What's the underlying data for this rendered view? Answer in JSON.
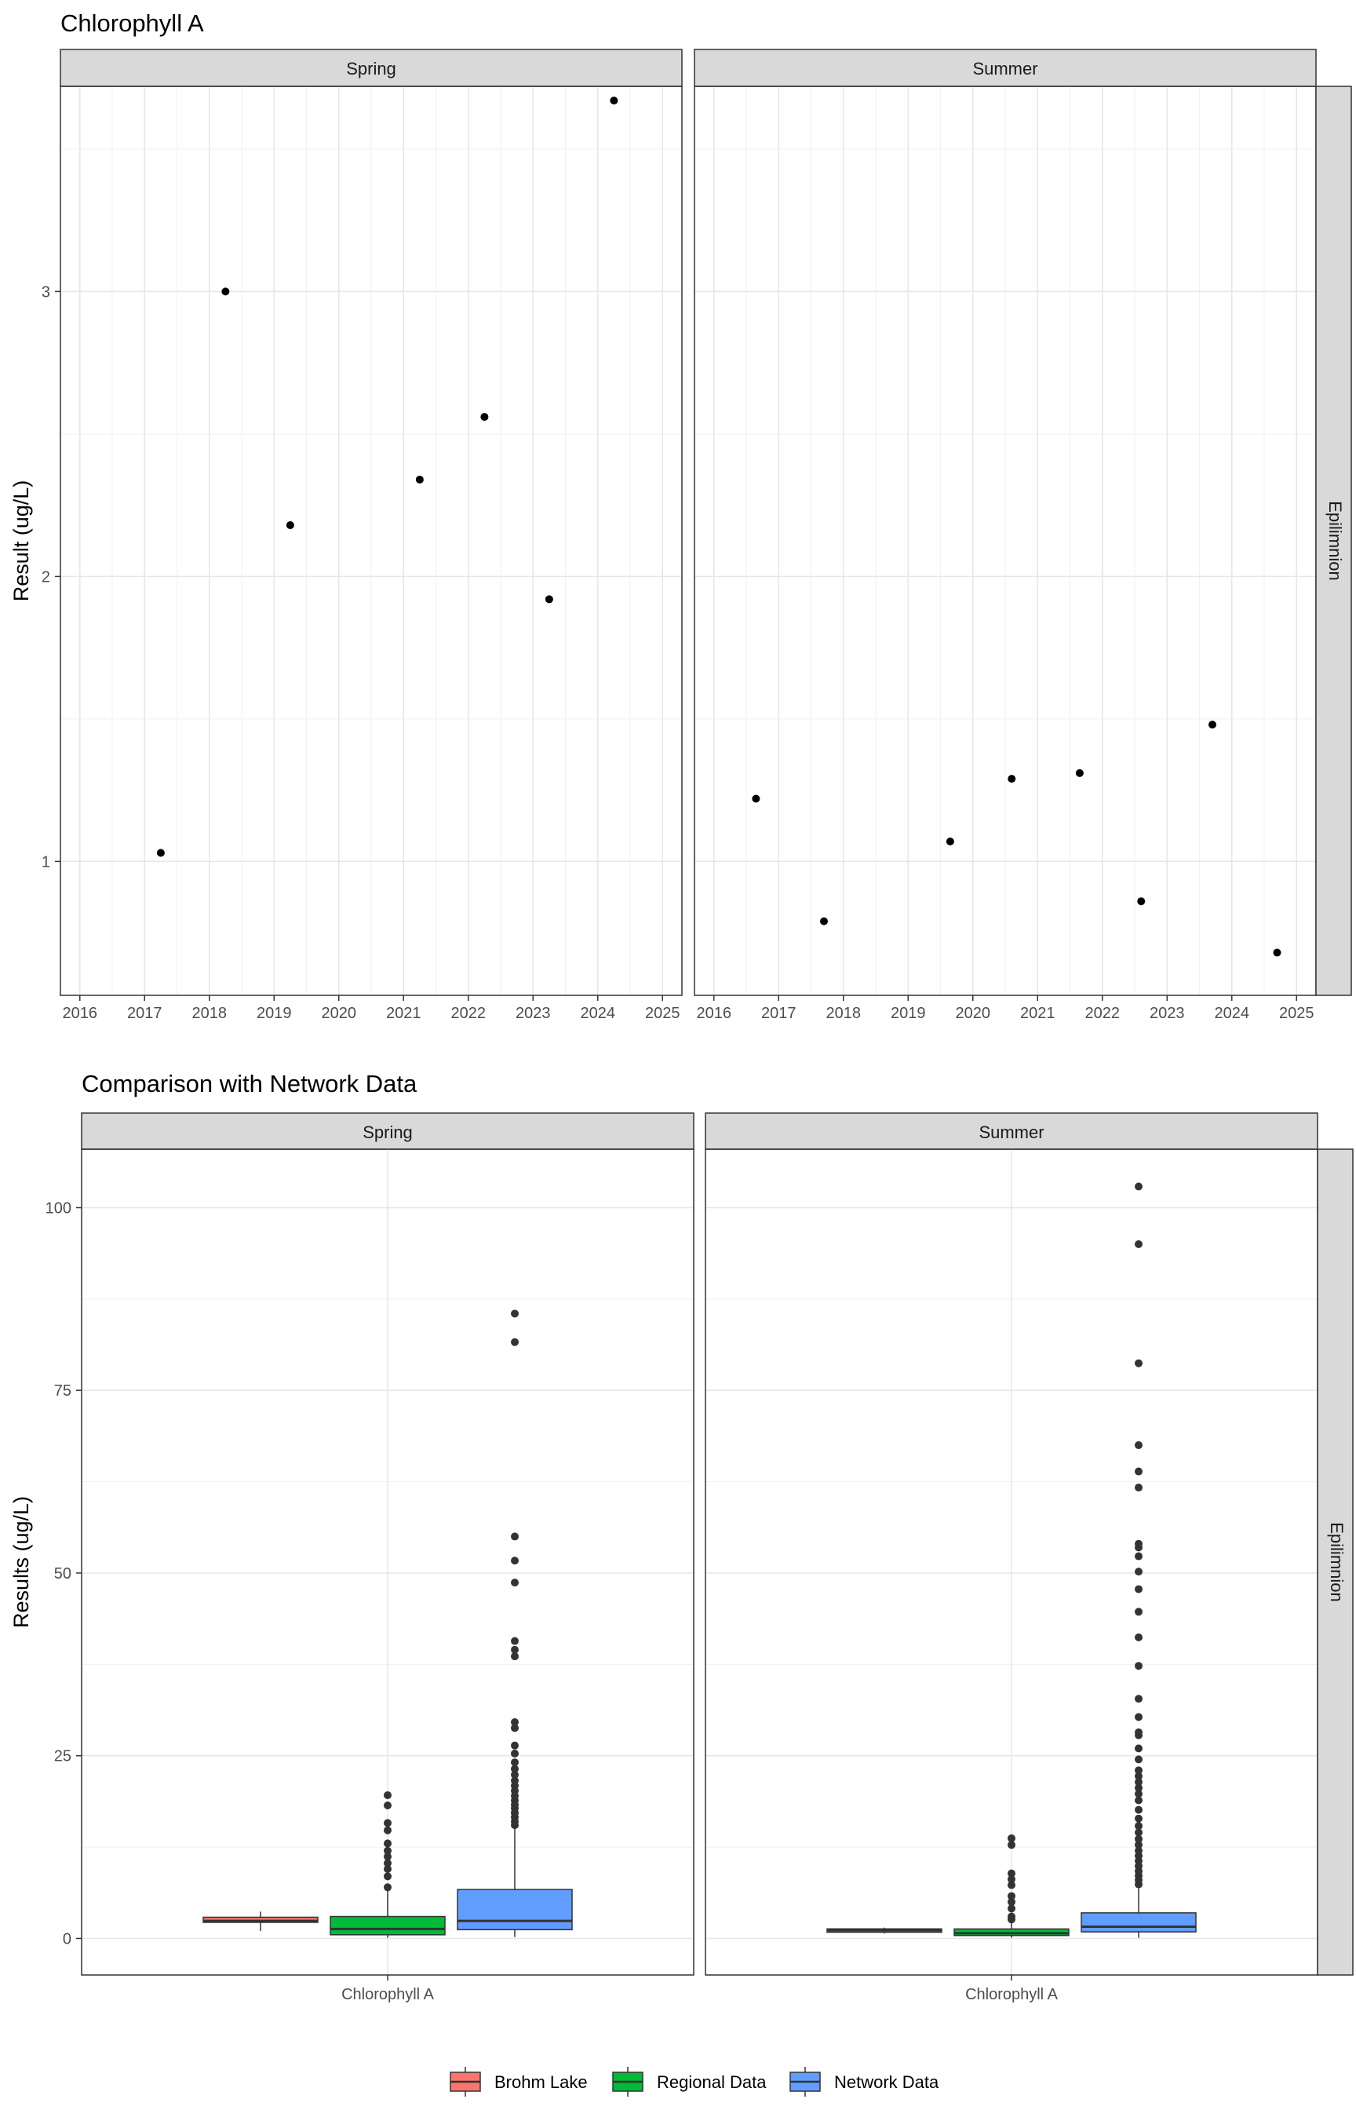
{
  "chart_data": [
    {
      "type": "scatter",
      "title": "Chlorophyll A",
      "ylabel": "Result (ug/L)",
      "xlabel": "",
      "xlim": [
        2015.7,
        2025.3
      ],
      "ylim": [
        0.53,
        3.72
      ],
      "x_ticks": [
        "2016",
        "2017",
        "2018",
        "2019",
        "2020",
        "2021",
        "2022",
        "2023",
        "2024",
        "2025"
      ],
      "y_ticks": [
        "1",
        "2",
        "3"
      ],
      "row_strip": "Epilimnion",
      "grid": true,
      "panels": [
        {
          "strip": "Spring",
          "points": [
            {
              "x": 2017.25,
              "y": 1.03
            },
            {
              "x": 2018.25,
              "y": 3.0
            },
            {
              "x": 2019.25,
              "y": 2.18
            },
            {
              "x": 2021.25,
              "y": 2.34
            },
            {
              "x": 2022.25,
              "y": 2.56
            },
            {
              "x": 2023.25,
              "y": 1.92
            },
            {
              "x": 2024.25,
              "y": 3.67
            }
          ]
        },
        {
          "strip": "Summer",
          "points": [
            {
              "x": 2016.65,
              "y": 1.22
            },
            {
              "x": 2017.7,
              "y": 0.79
            },
            {
              "x": 2019.65,
              "y": 1.07
            },
            {
              "x": 2020.6,
              "y": 1.29
            },
            {
              "x": 2021.65,
              "y": 1.31
            },
            {
              "x": 2022.6,
              "y": 0.86
            },
            {
              "x": 2023.7,
              "y": 1.48
            },
            {
              "x": 2024.7,
              "y": 0.68
            }
          ]
        }
      ]
    },
    {
      "type": "box",
      "title": "Comparison with Network Data",
      "ylabel": "Results (ug/L)",
      "xlabel": "",
      "ylim": [
        -5,
        108
      ],
      "y_ticks": [
        "0",
        "25",
        "50",
        "75",
        "100"
      ],
      "category": "Chlorophyll A",
      "row_strip": "Epilimnion",
      "grid": true,
      "legend": {
        "placement": "bottom",
        "entries": [
          {
            "name": "Brohm Lake",
            "color": "#F8766D"
          },
          {
            "name": "Regional Data",
            "color": "#00BA38"
          },
          {
            "name": "Network Data",
            "color": "#619CFF"
          }
        ]
      },
      "panels": [
        {
          "strip": "Spring",
          "boxes": [
            {
              "series": "Brohm Lake",
              "min": 1.0,
              "q1": 2.2,
              "median": 2.4,
              "q3": 2.9,
              "max": 3.67,
              "outliers": []
            },
            {
              "series": "Regional Data",
              "min": 0.1,
              "q1": 0.5,
              "median": 1.3,
              "q3": 3.0,
              "max": 6.5,
              "outliers": [
                7.0,
                8.5,
                9.5,
                10.3,
                11.2,
                12.0,
                13.0,
                14.8,
                15.8,
                18.2,
                19.6
              ]
            },
            {
              "series": "Network Data",
              "min": 0.2,
              "q1": 1.2,
              "median": 2.4,
              "q3": 6.7,
              "max": 15.0,
              "outliers": [
                15.5,
                16.0,
                16.6,
                17.2,
                17.8,
                18.3,
                18.9,
                19.5,
                20.2,
                20.9,
                21.6,
                22.4,
                23.2,
                24.1,
                25.3,
                26.4,
                28.8,
                29.6,
                38.6,
                39.5,
                40.7,
                48.7,
                51.7,
                55.0,
                81.6,
                85.5
              ]
            }
          ]
        },
        {
          "strip": "Summer",
          "boxes": [
            {
              "series": "Brohm Lake",
              "min": 0.68,
              "q1": 0.85,
              "median": 1.1,
              "q3": 1.31,
              "max": 1.48,
              "outliers": []
            },
            {
              "series": "Regional Data",
              "min": 0.1,
              "q1": 0.4,
              "median": 0.7,
              "q3": 1.3,
              "max": 2.2,
              "outliers": [
                2.6,
                3.0,
                4.1,
                5.0,
                5.8,
                7.3,
                8.1,
                8.9,
                12.8,
                13.7
              ]
            },
            {
              "series": "Network Data",
              "min": 0.1,
              "q1": 0.9,
              "median": 1.6,
              "q3": 3.5,
              "max": 7.0,
              "outliers": [
                7.4,
                8.0,
                8.6,
                9.2,
                9.9,
                10.6,
                11.3,
                12.0,
                12.8,
                13.6,
                14.5,
                15.4,
                16.4,
                17.6,
                18.9,
                19.8,
                20.6,
                21.4,
                22.2,
                23.0,
                24.5,
                26.0,
                27.8,
                28.2,
                30.3,
                32.8,
                37.3,
                41.2,
                44.7,
                47.8,
                50.2,
                52.3,
                53.5,
                54.0,
                61.7,
                63.9,
                67.5,
                78.7,
                95.0,
                102.9
              ]
            }
          ]
        }
      ]
    }
  ]
}
